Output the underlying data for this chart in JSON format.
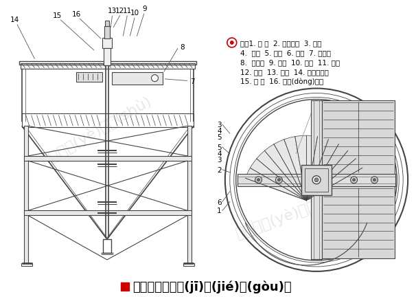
{
  "title": "高效深錐濃縮機(jī)結(jié)構(gòu)圖",
  "title_color": "#000000",
  "title_square_color": "#cc0000",
  "bg_color": "#ffffff",
  "line_color": "#444444",
  "note_symbol_color": "#cc0000",
  "notes_line1": "注：1. 槽 體  2. 槽體支架  3. 螺栓",
  "notes_line2": "4.  螺母  5. 墊圈  6. 天橋  7. 給料槽",
  "notes_line3": "8.  脫氣槽  9. 螺栓  10. 螺母  11. 墊圈",
  "notes_line4": "12. 螺栓  13. 墊圈  14. 傾斜板裝置",
  "notes_line5": "15. 接 管  16. 傳動(dòng)裝置"
}
